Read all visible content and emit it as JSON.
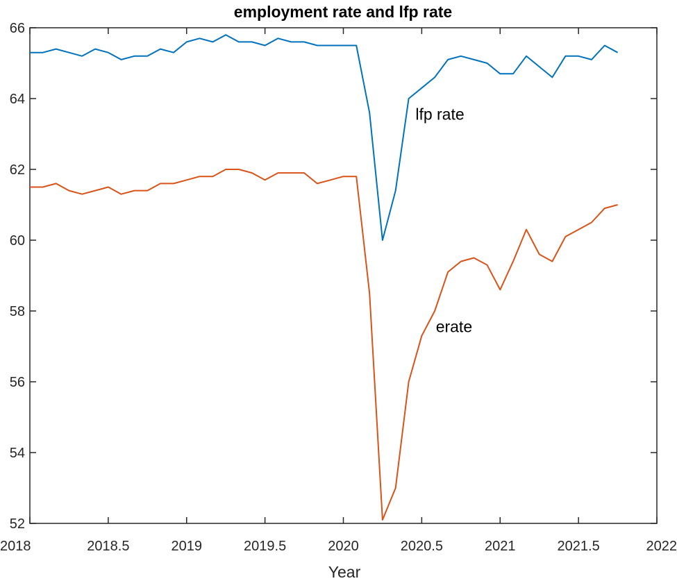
{
  "chart_data": {
    "type": "line",
    "title": "employment rate and lfp rate",
    "xlabel": "Year",
    "ylabel": "",
    "xlim": [
      2018,
      2022
    ],
    "ylim": [
      52,
      66
    ],
    "x_ticks": [
      2018,
      2018.5,
      2019,
      2019.5,
      2020,
      2020.5,
      2021,
      2021.5,
      2022
    ],
    "y_ticks": [
      52,
      54,
      56,
      58,
      60,
      62,
      64,
      66
    ],
    "grid": false,
    "x": [
      2018.0,
      2018.083,
      2018.167,
      2018.25,
      2018.333,
      2018.417,
      2018.5,
      2018.583,
      2018.667,
      2018.75,
      2018.833,
      2018.917,
      2019.0,
      2019.083,
      2019.167,
      2019.25,
      2019.333,
      2019.417,
      2019.5,
      2019.583,
      2019.667,
      2019.75,
      2019.833,
      2019.917,
      2020.0,
      2020.083,
      2020.167,
      2020.25,
      2020.333,
      2020.417,
      2020.5,
      2020.583,
      2020.667,
      2020.75,
      2020.833,
      2020.917,
      2021.0,
      2021.083,
      2021.167,
      2021.25,
      2021.333,
      2021.417,
      2021.5,
      2021.583,
      2021.667,
      2021.75
    ],
    "series": [
      {
        "name": "lfp rate",
        "color": "#0072BD",
        "values": [
          65.3,
          65.3,
          65.4,
          65.3,
          65.2,
          65.4,
          65.3,
          65.1,
          65.2,
          65.2,
          65.4,
          65.3,
          65.6,
          65.7,
          65.6,
          65.8,
          65.6,
          65.6,
          65.5,
          65.7,
          65.6,
          65.6,
          65.5,
          65.5,
          65.5,
          65.5,
          63.6,
          60.0,
          61.4,
          64.0,
          64.3,
          64.6,
          65.1,
          65.2,
          65.1,
          65.0,
          64.7,
          64.7,
          65.2,
          64.9,
          64.6,
          65.2,
          65.2,
          65.1,
          65.5,
          65.3
        ]
      },
      {
        "name": "erate",
        "color": "#D95319",
        "values": [
          61.5,
          61.5,
          61.6,
          61.4,
          61.3,
          61.4,
          61.5,
          61.3,
          61.4,
          61.4,
          61.6,
          61.6,
          61.7,
          61.8,
          61.8,
          62.0,
          62.0,
          61.9,
          61.7,
          61.9,
          61.9,
          61.9,
          61.6,
          61.7,
          61.8,
          61.8,
          58.5,
          52.1,
          53.0,
          56.0,
          57.3,
          58.0,
          59.1,
          59.4,
          59.5,
          59.3,
          58.6,
          59.4,
          60.3,
          59.6,
          59.4,
          60.1,
          60.3,
          60.5,
          60.9,
          61.0
        ]
      }
    ],
    "annotations": [
      {
        "text": "lfp rate",
        "x": 2020.46,
        "y": 63.4
      },
      {
        "text": "erate",
        "x": 2020.59,
        "y": 57.4
      }
    ]
  }
}
